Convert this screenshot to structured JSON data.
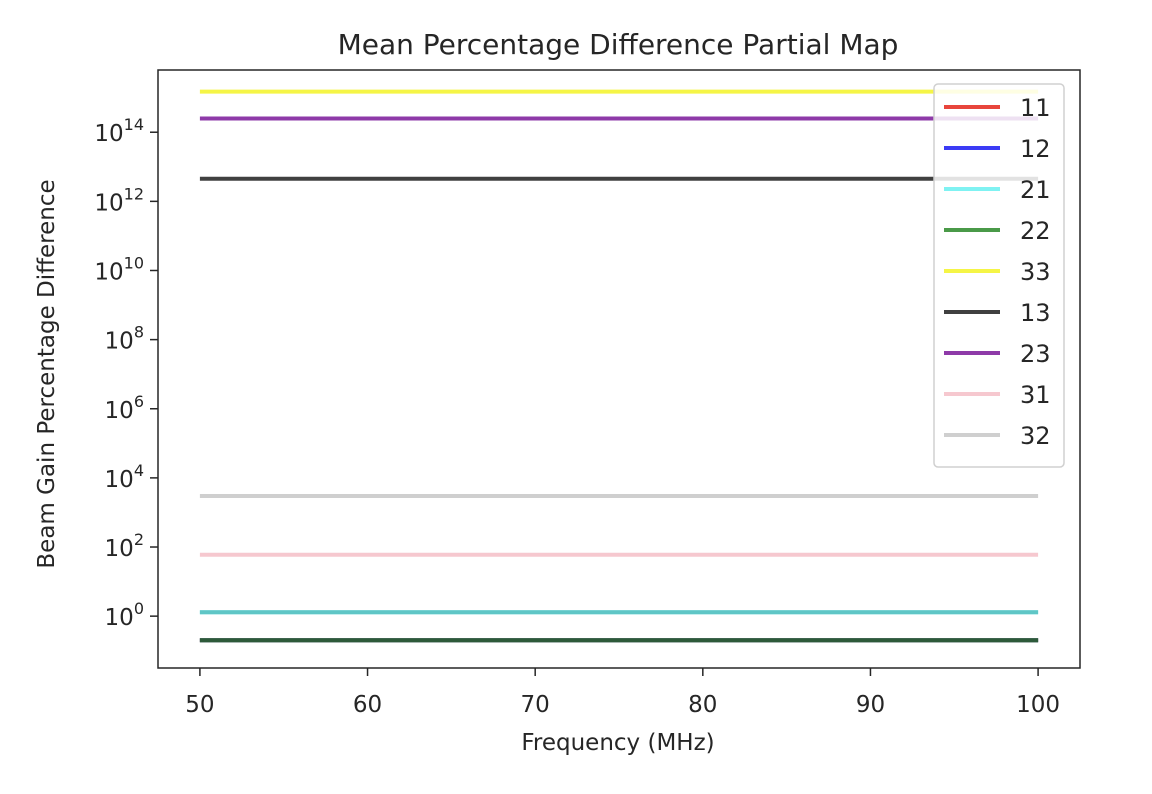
{
  "chart_data": {
    "type": "line",
    "title": "Mean Percentage Difference Partial Map",
    "xlabel": "Frequency (MHz)",
    "ylabel": "Beam Gain Percentage Difference",
    "x": [
      50,
      100
    ],
    "xlim": [
      47.5,
      102.5
    ],
    "xticks": [
      50,
      60,
      70,
      80,
      90,
      100
    ],
    "ylim_log10": [
      -1.5,
      15.8
    ],
    "yscale": "log",
    "yticks": [
      {
        "base": "10",
        "exp": "0",
        "log10": 0
      },
      {
        "base": "10",
        "exp": "2",
        "log10": 2
      },
      {
        "base": "10",
        "exp": "4",
        "log10": 4
      },
      {
        "base": "10",
        "exp": "6",
        "log10": 6
      },
      {
        "base": "10",
        "exp": "8",
        "log10": 8
      },
      {
        "base": "10",
        "exp": "10",
        "log10": 10
      },
      {
        "base": "10",
        "exp": "12",
        "log10": 12
      },
      {
        "base": "10",
        "exp": "14",
        "log10": 14
      }
    ],
    "grid": false,
    "legend_position": "top-right",
    "series": [
      {
        "name": "11",
        "color": "#e8453c",
        "values": [
          0.2,
          0.2
        ]
      },
      {
        "name": "12",
        "color": "#3b3bf5",
        "values": [
          0.2,
          0.2
        ]
      },
      {
        "name": "21",
        "color": "#7ff2f2",
        "values": [
          1.3,
          1.3
        ]
      },
      {
        "name": "22",
        "color": "#4a9a48",
        "values": [
          0.2,
          0.2
        ]
      },
      {
        "name": "33",
        "color": "#f5f546",
        "values": [
          1500000000000000.0,
          1500000000000000.0
        ]
      },
      {
        "name": "13",
        "color": "#404040",
        "values": [
          4500000000000.0,
          4500000000000.0
        ]
      },
      {
        "name": "23",
        "color": "#8e3aa8",
        "values": [
          250000000000000.0,
          250000000000000.0
        ]
      },
      {
        "name": "31",
        "color": "#f6c8cf",
        "values": [
          60,
          60
        ]
      },
      {
        "name": "32",
        "color": "#cfcfcf",
        "values": [
          3000,
          3000
        ]
      }
    ],
    "overlay_colors": [
      {
        "name": "21",
        "color": "#5fc6c6"
      },
      {
        "name": "22",
        "color": "#2d5a3a"
      }
    ]
  }
}
